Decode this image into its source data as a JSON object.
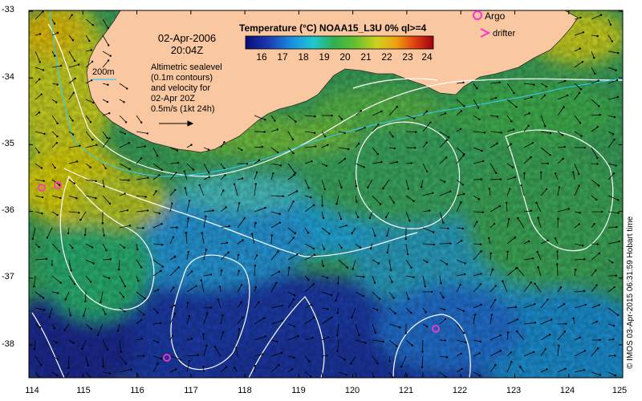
{
  "title": "Temperature (°C) NOAA15_L3U 0% ql>=4",
  "date": "02-Apr-2006",
  "time": "20:04Z",
  "description_lines": [
    "Altimetric sealevel",
    "(0.1m contours)",
    "and velocity for",
    "02-Apr 20Z",
    "0.5m/s (1kt 24h)"
  ],
  "depth_contour_label": "200m",
  "legend": {
    "argo": "Argo",
    "drifter": "drifter"
  },
  "credit": "© IMOS 03-Apr-2015 06:31:59 Hobart time",
  "colorbar": {
    "ticks": [
      "16",
      "17",
      "18",
      "19",
      "20",
      "21",
      "22",
      "23",
      "24"
    ]
  },
  "axes": {
    "x_ticks": [
      "114",
      "115",
      "116",
      "117",
      "118",
      "119",
      "120",
      "121",
      "122",
      "123",
      "124",
      "125"
    ],
    "y_ticks": [
      "-33",
      "-34",
      "-35",
      "-36",
      "-37",
      "-38"
    ]
  },
  "colors": {
    "land": "#FAC8A0",
    "contour": "#FFFFFF",
    "depth_contour": "#33CCFF",
    "argo": "#FF33CC",
    "drifter": "#FF33CC",
    "vector": "#000000"
  }
}
